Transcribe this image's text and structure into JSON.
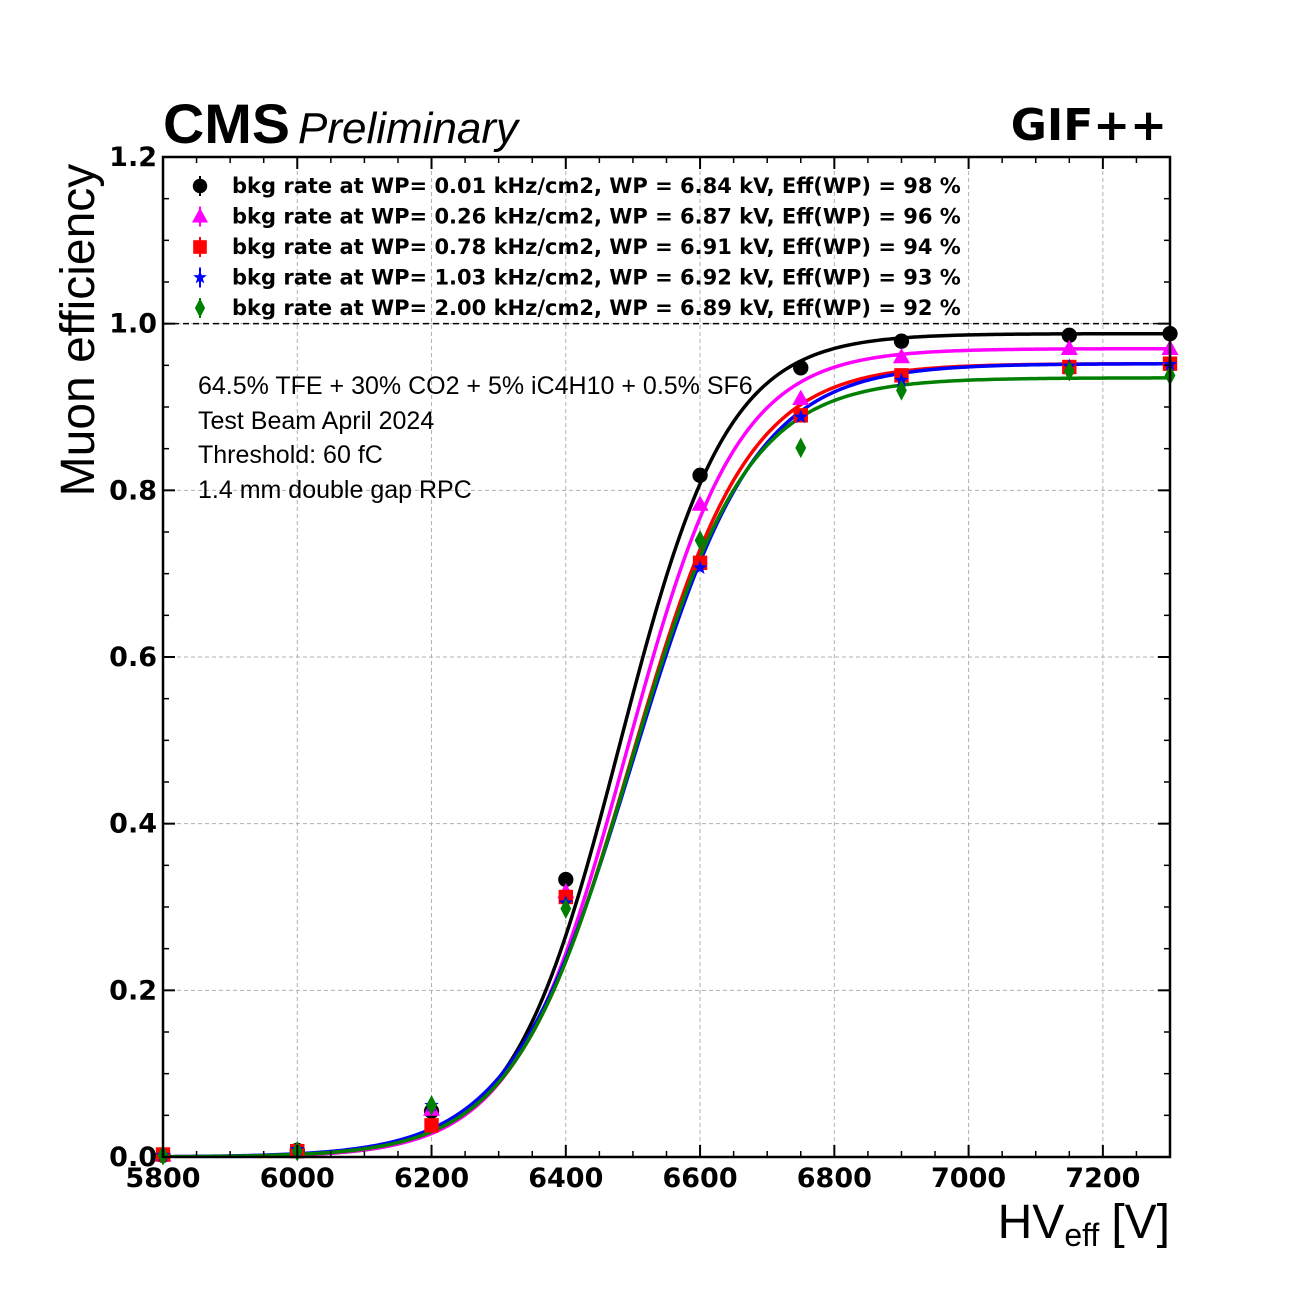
{
  "header": {
    "experiment": "CMS",
    "status": "Preliminary",
    "facility": "GIF++"
  },
  "annotations": [
    "64.5% TFE + 30% CO2 + 5% iC4H10 + 0.5% SF6",
    "Test Beam April 2024",
    "Threshold: 60 fC",
    "1.4 mm double gap RPC"
  ],
  "chart_data": {
    "type": "scatter",
    "xlabel_main": "HV",
    "xlabel_sub": "eff",
    "xlabel_unit": "[V]",
    "ylabel": "Muon efficiency",
    "xlim": [
      5800,
      7300
    ],
    "ylim": [
      0.0,
      1.2
    ],
    "x_ticks": [
      "5800",
      "6000",
      "6200",
      "6400",
      "6600",
      "6800",
      "7000",
      "7200"
    ],
    "y_ticks": [
      "0.0",
      "0.2",
      "0.4",
      "0.6",
      "0.8",
      "1.0",
      "1.2"
    ],
    "grid": true,
    "reference_line": 1.0,
    "legend_position": "top-left",
    "series": [
      {
        "name": "bkg rate at WP= 0.01 kHz/cm2, WP = 6.84 kV, Eff(WP) = 98 %",
        "color": "#000000",
        "marker": "circle",
        "x": [
          5800,
          6000,
          6200,
          6400,
          6600,
          6750,
          6900,
          7150,
          7300
        ],
        "y": [
          0.002,
          0.008,
          0.055,
          0.333,
          0.818,
          0.947,
          0.979,
          0.986,
          0.988
        ],
        "fit": {
          "emax": 0.988,
          "hv50": 6480,
          "lambda": 0.0125
        }
      },
      {
        "name": "bkg rate at WP= 0.26 kHz/cm2, WP = 6.87 kV, Eff(WP) = 96 %",
        "color": "#ff00ff",
        "marker": "triangle",
        "x": [
          5800,
          6000,
          6200,
          6400,
          6600,
          6750,
          6900,
          7150,
          7300
        ],
        "y": [
          0.002,
          0.007,
          0.057,
          0.318,
          0.783,
          0.91,
          0.96,
          0.97,
          0.97
        ],
        "fit": {
          "emax": 0.97,
          "hv50": 6490,
          "lambda": 0.0121
        }
      },
      {
        "name": "bkg rate at WP= 0.78 kHz/cm2, WP = 6.91 kV, Eff(WP) = 94 %",
        "color": "#ff0000",
        "marker": "square",
        "x": [
          5800,
          6000,
          6200,
          6400,
          6600,
          6750,
          6900,
          7150,
          7300
        ],
        "y": [
          0.003,
          0.007,
          0.038,
          0.312,
          0.713,
          0.89,
          0.938,
          0.948,
          0.952
        ],
        "fit": {
          "emax": 0.952,
          "hv50": 6497,
          "lambda": 0.0115
        }
      },
      {
        "name": "bkg rate at WP= 1.03 kHz/cm2, WP = 6.92 kV, Eff(WP) = 93 %",
        "color": "#0000ff",
        "marker": "star",
        "x": [
          5800,
          6000,
          6200,
          6400,
          6600,
          6750,
          6900,
          7150,
          7300
        ],
        "y": [
          0.002,
          0.009,
          0.062,
          0.305,
          0.707,
          0.888,
          0.932,
          0.949,
          0.951
        ],
        "fit": {
          "emax": 0.952,
          "hv50": 6500,
          "lambda": 0.011
        }
      },
      {
        "name": "bkg rate at WP= 2.00 kHz/cm2, WP = 6.89 kV, Eff(WP) = 92 %",
        "color": "#008000",
        "marker": "diamond",
        "x": [
          5800,
          6000,
          6200,
          6400,
          6600,
          6750,
          6900,
          7150,
          7300
        ],
        "y": [
          0.002,
          0.007,
          0.062,
          0.298,
          0.74,
          0.851,
          0.92,
          0.943,
          0.938
        ],
        "fit": {
          "emax": 0.935,
          "hv50": 6495,
          "lambda": 0.0115
        }
      }
    ]
  }
}
